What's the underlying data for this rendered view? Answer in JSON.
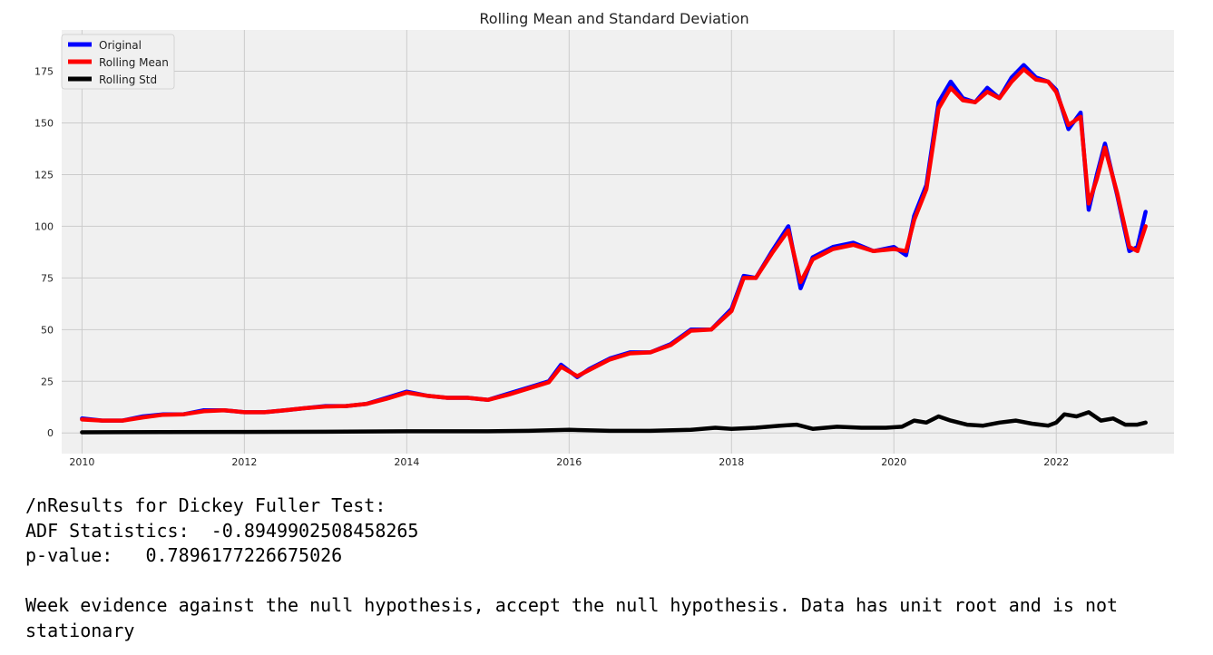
{
  "chart_data": {
    "type": "line",
    "title": "Rolling Mean and Standard Deviation",
    "xlabel": "",
    "ylabel": "",
    "xlim": [
      2009.75,
      2023.45
    ],
    "ylim": [
      -10,
      195
    ],
    "xticks": [
      2010,
      2012,
      2014,
      2016,
      2018,
      2020,
      2022
    ],
    "yticks": [
      0,
      25,
      50,
      75,
      100,
      125,
      150,
      175
    ],
    "grid": true,
    "legend_position": "top-left",
    "series": [
      {
        "name": "Original",
        "color": "#0000ff",
        "x": [
          2010.0,
          2010.25,
          2010.5,
          2010.75,
          2011.0,
          2011.25,
          2011.5,
          2011.75,
          2012.0,
          2012.25,
          2012.5,
          2012.75,
          2013.0,
          2013.25,
          2013.5,
          2013.75,
          2014.0,
          2014.25,
          2014.5,
          2014.75,
          2015.0,
          2015.25,
          2015.5,
          2015.75,
          2015.9,
          2016.1,
          2016.25,
          2016.5,
          2016.75,
          2017.0,
          2017.25,
          2017.5,
          2017.75,
          2018.0,
          2018.15,
          2018.3,
          2018.5,
          2018.7,
          2018.85,
          2019.0,
          2019.25,
          2019.5,
          2019.75,
          2020.0,
          2020.15,
          2020.25,
          2020.4,
          2020.55,
          2020.7,
          2020.85,
          2021.0,
          2021.15,
          2021.3,
          2021.45,
          2021.6,
          2021.75,
          2021.9,
          2022.0,
          2022.15,
          2022.3,
          2022.4,
          2022.5,
          2022.6,
          2022.75,
          2022.9,
          2023.0,
          2023.1
        ],
        "values": [
          7,
          6,
          6,
          8,
          9,
          9,
          11,
          11,
          10,
          10,
          11,
          12,
          13,
          13,
          14,
          17,
          20,
          18,
          17,
          17,
          16,
          19,
          22,
          25,
          33,
          27,
          31,
          36,
          39,
          39,
          43,
          50,
          50,
          60,
          76,
          75,
          88,
          100,
          70,
          85,
          90,
          92,
          88,
          90,
          86,
          105,
          120,
          160,
          170,
          162,
          160,
          167,
          162,
          172,
          178,
          172,
          170,
          166,
          147,
          155,
          108,
          125,
          140,
          115,
          88,
          90,
          107
        ]
      },
      {
        "name": "Rolling Mean",
        "color": "#ff0000",
        "x": [
          2010.0,
          2010.25,
          2010.5,
          2010.75,
          2011.0,
          2011.25,
          2011.5,
          2011.75,
          2012.0,
          2012.25,
          2012.5,
          2012.75,
          2013.0,
          2013.25,
          2013.5,
          2013.75,
          2014.0,
          2014.25,
          2014.5,
          2014.75,
          2015.0,
          2015.25,
          2015.5,
          2015.75,
          2015.9,
          2016.1,
          2016.25,
          2016.5,
          2016.75,
          2017.0,
          2017.25,
          2017.5,
          2017.75,
          2018.0,
          2018.15,
          2018.3,
          2018.5,
          2018.7,
          2018.85,
          2019.0,
          2019.25,
          2019.5,
          2019.75,
          2020.0,
          2020.15,
          2020.25,
          2020.4,
          2020.55,
          2020.7,
          2020.85,
          2021.0,
          2021.15,
          2021.3,
          2021.45,
          2021.6,
          2021.75,
          2021.9,
          2022.0,
          2022.15,
          2022.3,
          2022.4,
          2022.5,
          2022.6,
          2022.75,
          2022.9,
          2023.0,
          2023.1
        ],
        "values": [
          6.5,
          6,
          6,
          7.5,
          8.8,
          9,
          10.5,
          11,
          10,
          10,
          11,
          12,
          12.8,
          13,
          14,
          16.5,
          19.5,
          18,
          17,
          17,
          16,
          18.5,
          21.5,
          24.5,
          32,
          27.5,
          30.5,
          35.5,
          38.5,
          39,
          42.5,
          49.5,
          50,
          59,
          75,
          75,
          87,
          98,
          73,
          84,
          89,
          91,
          88,
          89,
          88,
          103,
          118,
          157,
          167,
          161,
          160,
          165,
          162,
          170,
          176,
          171,
          170,
          165,
          149,
          153,
          111,
          123,
          138,
          116,
          90,
          88,
          100
        ]
      },
      {
        "name": "Rolling Std",
        "color": "#000000",
        "x": [
          2010.0,
          2011.0,
          2012.0,
          2013.0,
          2014.0,
          2015.0,
          2015.5,
          2016.0,
          2016.5,
          2017.0,
          2017.5,
          2017.8,
          2018.0,
          2018.3,
          2018.6,
          2018.8,
          2019.0,
          2019.3,
          2019.6,
          2019.9,
          2020.1,
          2020.25,
          2020.4,
          2020.55,
          2020.7,
          2020.9,
          2021.1,
          2021.3,
          2021.5,
          2021.7,
          2021.9,
          2022.0,
          2022.1,
          2022.25,
          2022.4,
          2022.55,
          2022.7,
          2022.85,
          2023.0,
          2023.1
        ],
        "values": [
          0.3,
          0.4,
          0.5,
          0.6,
          0.8,
          0.8,
          1.0,
          1.5,
          1.0,
          1.0,
          1.5,
          2.5,
          2.0,
          2.5,
          3.5,
          4.0,
          2.0,
          3.0,
          2.5,
          2.5,
          3.0,
          6.0,
          5.0,
          8.0,
          6.0,
          4.0,
          3.5,
          5.0,
          6.0,
          4.5,
          3.5,
          5.0,
          9.0,
          8.0,
          10.0,
          6.0,
          7.0,
          4.0,
          4.0,
          5.0
        ]
      }
    ]
  },
  "output": {
    "lines": [
      "/nResults for Dickey Fuller Test:",
      "ADF Statistics:  -0.8949902508458265",
      "p-value:   0.7896177226675026"
    ],
    "conclusion": "Week evidence against the null hypothesis, accept the null hypothesis. Data has unit root and is not stationary"
  },
  "colors": {
    "plot_background": "#f0f0f0",
    "grid": "#cbcbcb"
  }
}
